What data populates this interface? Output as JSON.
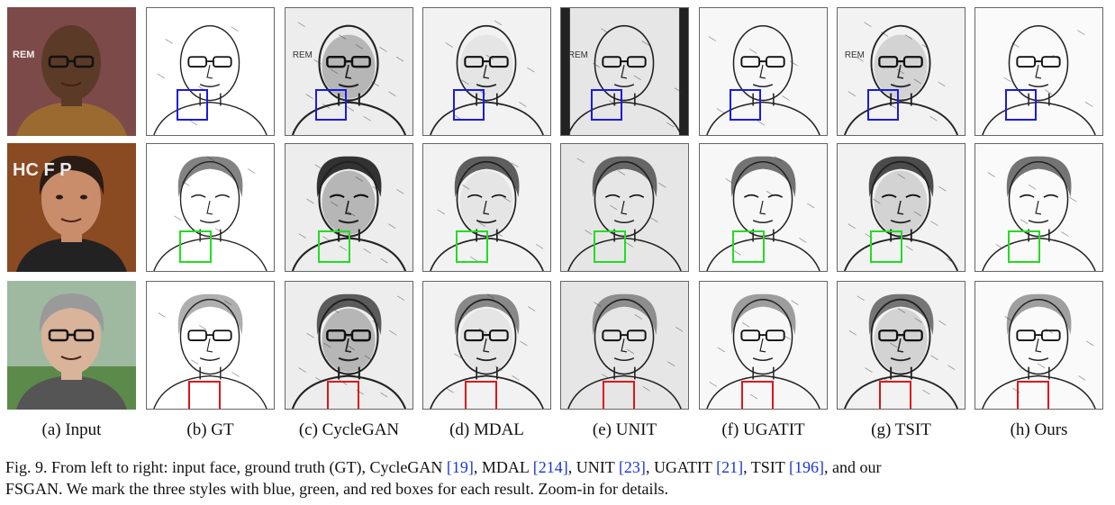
{
  "columns": [
    {
      "key": "input",
      "label": "(a) Input"
    },
    {
      "key": "gt",
      "label": "(b) GT"
    },
    {
      "key": "cyclegan",
      "label": "(c) CycleGAN"
    },
    {
      "key": "mdal",
      "label": "(d) MDAL"
    },
    {
      "key": "unit",
      "label": "(e) UNIT"
    },
    {
      "key": "ugatit",
      "label": "(f) UGATIT"
    },
    {
      "key": "tsit",
      "label": "(g) TSIT"
    },
    {
      "key": "ours",
      "label": "(h) Ours"
    }
  ],
  "rows": [
    {
      "key": "row-1",
      "box_color": "#1a1ae6",
      "photo_text": "REM"
    },
    {
      "key": "row-2",
      "box_color": "#22dd22",
      "photo_text": "HC F P"
    },
    {
      "key": "row-3",
      "box_color": "#e01515",
      "photo_text": ""
    }
  ],
  "sketch_text_overlay": "REM",
  "caption": {
    "prefix": "Fig. 9. From left to right: input face, ground truth (GT), CycleGAN ",
    "ref1": "[19]",
    "t1": ", MDAL ",
    "ref2": "[214]",
    "t2": ", UNIT ",
    "ref3": "[23]",
    "t3": ", UGATIT ",
    "ref4": "[21]",
    "t4": ", TSIT ",
    "ref5": "[196]",
    "t5": ", and our",
    "line2": "FSGAN. We mark the three styles with blue, green, and red boxes for each result. Zoom-in for details."
  },
  "colors": {
    "ref_link": "#1a35d6",
    "blue_box": "#1a1ae6",
    "green_box": "#22dd22",
    "red_box": "#e01515"
  }
}
